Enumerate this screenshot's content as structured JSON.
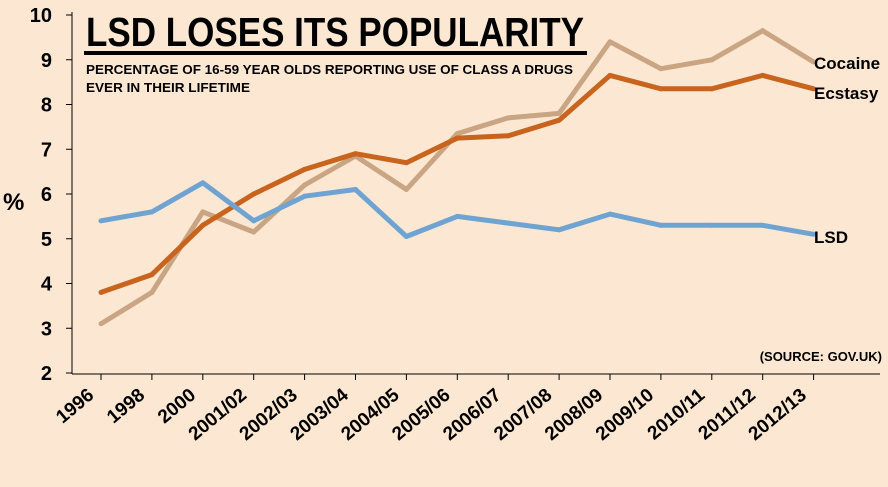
{
  "chart_data": {
    "type": "line",
    "title": "LSD LOSES ITS POPULARITY",
    "subtitle": [
      "PERCENTAGE OF 16-59 YEAR OLDS REPORTING USE OF CLASS A DRUGS",
      "EVER IN THEIR LIFETIME"
    ],
    "ylabel": "%",
    "source": "(SOURCE: GOV.UK)",
    "ylim": [
      2,
      10
    ],
    "yticks": [
      2,
      3,
      4,
      5,
      6,
      7,
      8,
      9,
      10
    ],
    "categories": [
      "1996",
      "1998",
      "2000",
      "2001/02",
      "2002/03",
      "2003/04",
      "2004/05",
      "2005/06",
      "2006/07",
      "2007/08",
      "2008/09",
      "2009/10",
      "2010/11",
      "2011/12",
      "2012/13"
    ],
    "grid": false,
    "series": [
      {
        "name": "Cocaine",
        "color": "#c9a584",
        "values": [
          3.1,
          3.8,
          5.6,
          5.15,
          6.2,
          6.85,
          6.1,
          7.35,
          7.7,
          7.8,
          9.4,
          8.8,
          9.0,
          9.65,
          8.95
        ]
      },
      {
        "name": "Ecstasy",
        "color": "#c8641e",
        "values": [
          3.8,
          4.2,
          5.3,
          6.0,
          6.55,
          6.9,
          6.7,
          7.25,
          7.3,
          7.65,
          8.65,
          8.35,
          8.35,
          8.65,
          8.35
        ]
      },
      {
        "name": "LSD",
        "color": "#6fa3d2",
        "values": [
          5.4,
          5.6,
          6.25,
          5.4,
          5.95,
          6.1,
          5.05,
          5.5,
          5.35,
          5.2,
          5.55,
          5.3,
          5.3,
          5.3,
          5.1
        ]
      }
    ]
  }
}
